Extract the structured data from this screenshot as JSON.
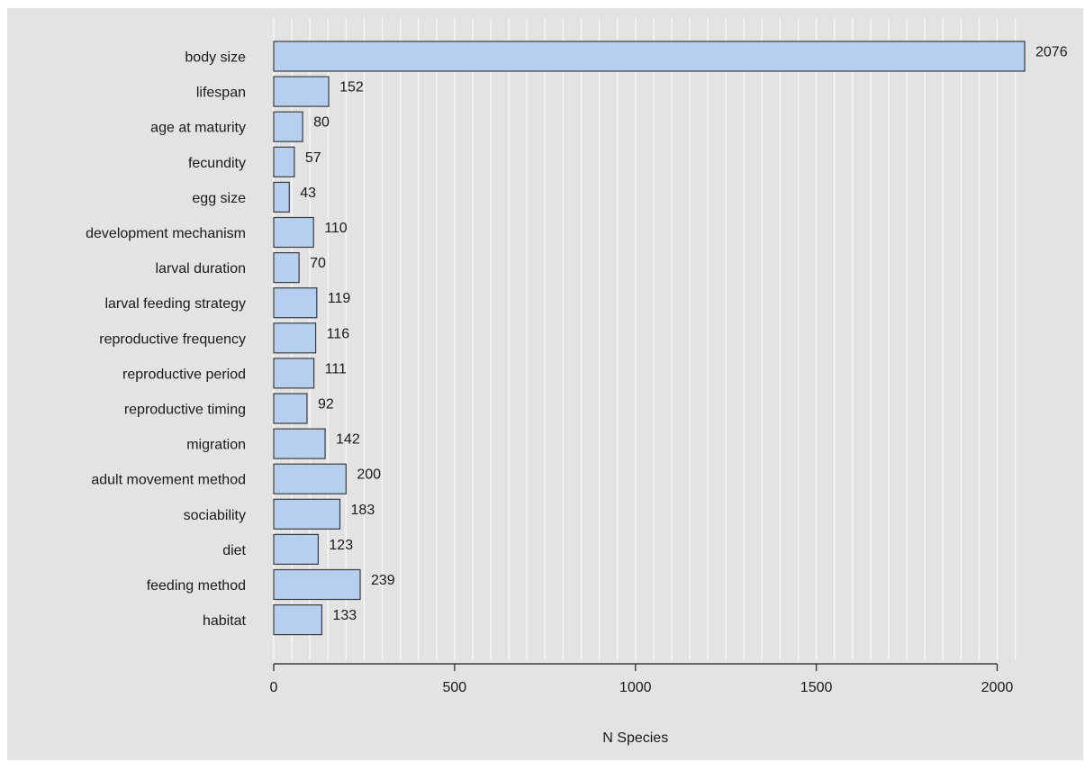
{
  "chart_data": {
    "type": "bar",
    "orientation": "horizontal",
    "title": "",
    "xlabel": "N Species",
    "ylabel": "",
    "xlim": [
      0,
      2076
    ],
    "x_ticks": [
      0,
      500,
      1000,
      1500,
      2000
    ],
    "x_tick_labels": [
      "0",
      "500",
      "1000",
      "1500",
      "2000"
    ],
    "grid": true,
    "grid_step": 50,
    "legend": "none",
    "categories": [
      "body size",
      "lifespan",
      "age at maturity",
      "fecundity",
      "egg size",
      "development mechanism",
      "larval duration",
      "larval feeding strategy",
      "reproductive frequency",
      "reproductive period",
      "reproductive timing",
      "migration",
      "adult movement method",
      "sociability",
      "diet",
      "feeding method",
      "habitat"
    ],
    "values": [
      2076,
      152,
      80,
      57,
      43,
      110,
      70,
      119,
      116,
      111,
      92,
      142,
      200,
      183,
      123,
      239,
      133
    ],
    "value_labels": [
      "2076",
      "152",
      "80",
      "57",
      "43",
      "110",
      "70",
      "119",
      "116",
      "111",
      "92",
      "142",
      "200",
      "183",
      "123",
      "239",
      "133"
    ],
    "colors": {
      "background": "#e3e3e3",
      "bar_fill": "#b7cfee",
      "bar_stroke": "#3c3c3c",
      "grid": "#f7f7f7",
      "axis": "#3c3c3c",
      "text": "#1a1a1a"
    }
  }
}
